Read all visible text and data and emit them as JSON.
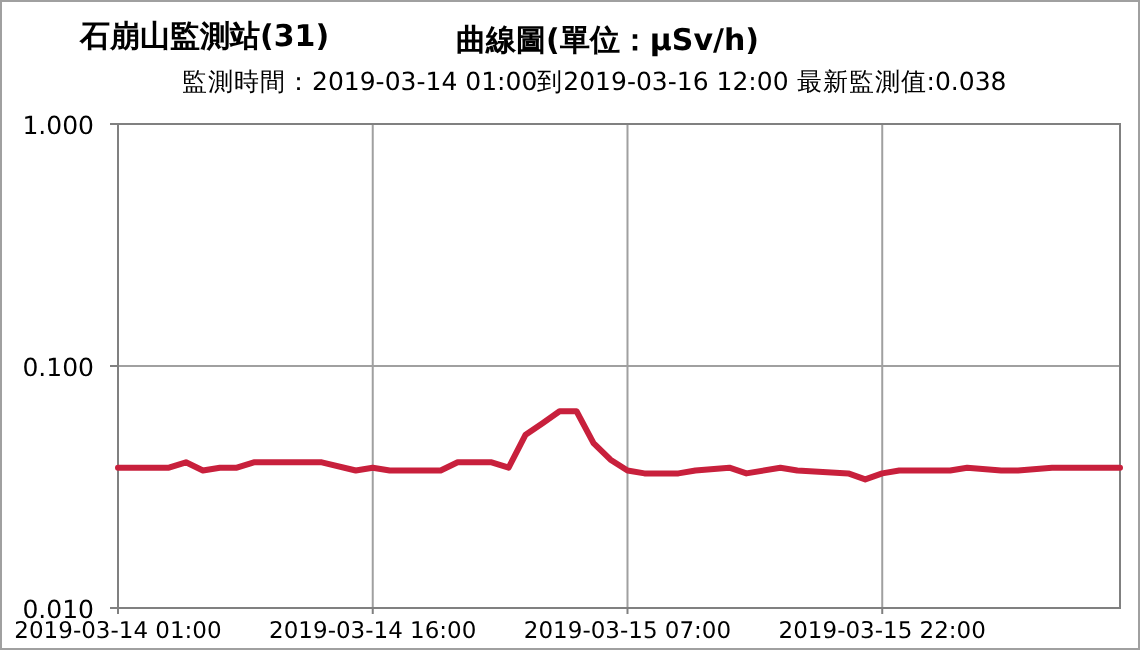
{
  "chart_data": {
    "type": "line",
    "title": "石崩山監測站(31)",
    "subtitle": "監測時間：2019-03-14 01:00到2019-03-16 12:00 最新監測值:0.038",
    "annotations": [
      "曲線圖(單位：μSv/h)"
    ],
    "x": [
      "2019-03-14T01:00",
      "2019-03-14T04:00",
      "2019-03-14T05:00",
      "2019-03-14T06:00",
      "2019-03-14T07:00",
      "2019-03-14T08:00",
      "2019-03-14T09:00",
      "2019-03-14T13:00",
      "2019-03-14T15:00",
      "2019-03-14T16:00",
      "2019-03-14T17:00",
      "2019-03-14T20:00",
      "2019-03-14T21:00",
      "2019-03-14T23:00",
      "2019-03-15T00:00",
      "2019-03-15T01:00",
      "2019-03-15T02:00",
      "2019-03-15T03:00",
      "2019-03-15T04:00",
      "2019-03-15T05:00",
      "2019-03-15T06:00",
      "2019-03-15T07:00",
      "2019-03-15T08:00",
      "2019-03-15T10:00",
      "2019-03-15T11:00",
      "2019-03-15T13:00",
      "2019-03-15T14:00",
      "2019-03-15T16:00",
      "2019-03-15T17:00",
      "2019-03-15T20:00",
      "2019-03-15T21:00",
      "2019-03-15T22:00",
      "2019-03-15T23:00",
      "2019-03-16T02:00",
      "2019-03-16T03:00",
      "2019-03-16T05:00",
      "2019-03-16T06:00",
      "2019-03-16T08:00",
      "2019-03-16T09:00",
      "2019-03-16T12:00"
    ],
    "series": [
      {
        "color": "#c8203c",
        "values": [
          0.038,
          0.038,
          0.04,
          0.037,
          0.038,
          0.038,
          0.04,
          0.04,
          0.037,
          0.038,
          0.037,
          0.037,
          0.04,
          0.04,
          0.038,
          0.052,
          0.058,
          0.065,
          0.065,
          0.048,
          0.041,
          0.037,
          0.036,
          0.036,
          0.037,
          0.038,
          0.036,
          0.038,
          0.037,
          0.036,
          0.034,
          0.036,
          0.037,
          0.037,
          0.038,
          0.037,
          0.037,
          0.038,
          0.038,
          0.038
        ]
      }
    ],
    "log": true,
    "xlim": [
      "2019-03-14T01:00",
      "2019-03-16T12:00"
    ],
    "xticks": [
      {
        "value": "2019-03-14T01:00",
        "label": "2019-03-14 01:00"
      },
      {
        "value": "2019-03-14T16:00",
        "label": "2019-03-14 16:00"
      },
      {
        "value": "2019-03-15T07:00",
        "label": "2019-03-15 07:00"
      },
      {
        "value": "2019-03-15T22:00",
        "label": "2019-03-15 22:00"
      }
    ],
    "ylim": [
      0.01,
      1
    ],
    "yticks": [
      {
        "value": 0.01,
        "label": "0.010"
      },
      {
        "value": 0.1,
        "label": "0.100"
      },
      {
        "value": 1,
        "label": "1.000"
      }
    ],
    "grid": true,
    "marker": "none",
    "line_style": "solid"
  }
}
